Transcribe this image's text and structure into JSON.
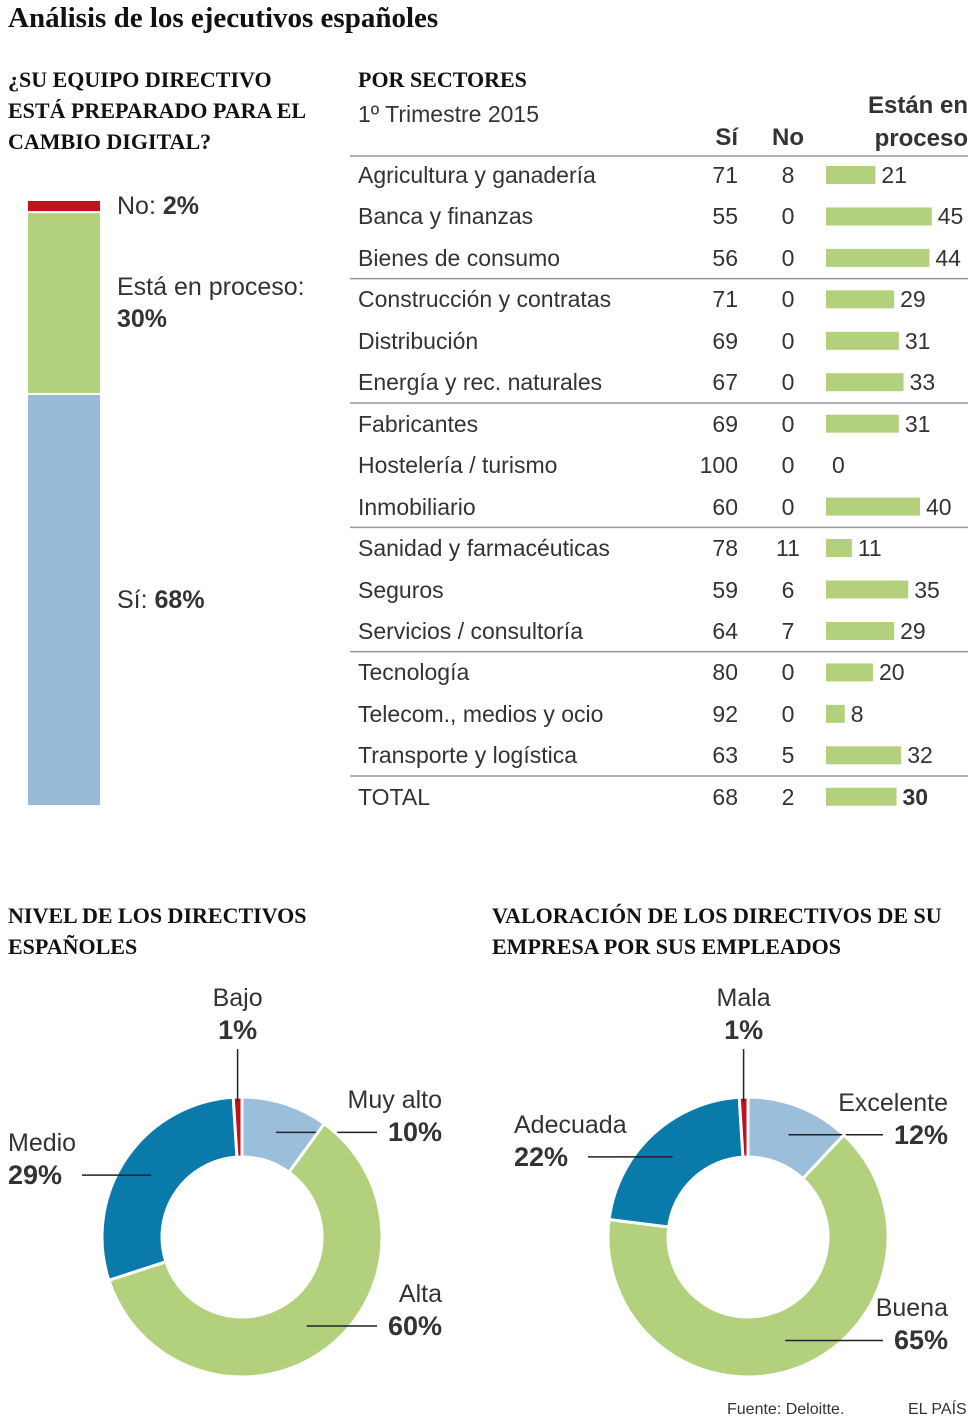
{
  "title": "Análisis de los ejecutivos españoles",
  "source": "Fuente: Deloitte.",
  "credit": "EL PAÍS",
  "chart_data": [
    {
      "type": "stacked_bar",
      "title": "¿SU EQUIPO DIRECTIVO ESTÁ PREPARADO PARA EL CAMBIO DIGITAL?",
      "series": [
        {
          "name": "Sí:",
          "color": "#96bad8",
          "values": [
            68
          ],
          "value_labels": [
            "68%"
          ]
        },
        {
          "name": "Está en proceso:",
          "color": "#b3d17c",
          "values": [
            30
          ],
          "value_labels": [
            "30%"
          ]
        },
        {
          "name": "No:",
          "color": "#c1121d",
          "values": [
            2
          ],
          "value_labels": [
            "2%"
          ]
        }
      ]
    },
    {
      "type": "table_bar",
      "title": "POR SECTORES",
      "subtitle": "1º Trimestre 2015",
      "categories": [
        "Agricultura y ganadería",
        "Banca y finanzas",
        "Bienes de consumo",
        "Construcción y contratas",
        "Distribución",
        "Energía y rec. naturales",
        "Fabricantes",
        "Hostelería / turismo",
        "Inmobiliario",
        "Sanidad y farmacéuticas",
        "Seguros",
        "Servicios / consultoría",
        "Tecnología",
        "Telecom., medios y ocio",
        "Transporte y logística",
        "TOTAL"
      ],
      "series": [
        {
          "name": "Sí",
          "values": [
            71,
            55,
            56,
            71,
            69,
            67,
            69,
            100,
            60,
            78,
            59,
            64,
            80,
            92,
            63,
            68
          ]
        },
        {
          "name": "No",
          "values": [
            8,
            0,
            0,
            0,
            0,
            0,
            0,
            0,
            0,
            11,
            6,
            7,
            0,
            0,
            5,
            2
          ]
        },
        {
          "name": "Están en proceso",
          "color": "#b3d17c",
          "values": [
            21,
            45,
            44,
            29,
            31,
            33,
            31,
            0,
            40,
            11,
            35,
            29,
            20,
            8,
            32,
            30
          ]
        }
      ]
    },
    {
      "type": "donut",
      "title": "NIVEL DE LOS DIRECTIVOS ESPAÑOLES",
      "categories": [
        "Muy alto",
        "Alta",
        "Medio",
        "Bajo"
      ],
      "values": [
        10,
        60,
        29,
        1
      ],
      "value_labels": [
        "10%",
        "60%",
        "29%",
        "1%"
      ],
      "colors": [
        "#9bbedb",
        "#b3d17c",
        "#0a7aab",
        "#c1121d"
      ]
    },
    {
      "type": "donut",
      "title": "VALORACIÓN DE LOS DIRECTIVOS DE SU EMPRESA POR SUS EMPLEADOS",
      "categories": [
        "Excelente",
        "Buena",
        "Adecuada",
        "Mala"
      ],
      "values": [
        12,
        65,
        22,
        1
      ],
      "value_labels": [
        "12%",
        "65%",
        "22%",
        "1%"
      ],
      "colors": [
        "#9bbedb",
        "#b3d17c",
        "#0a7aab",
        "#c1121d"
      ]
    }
  ]
}
